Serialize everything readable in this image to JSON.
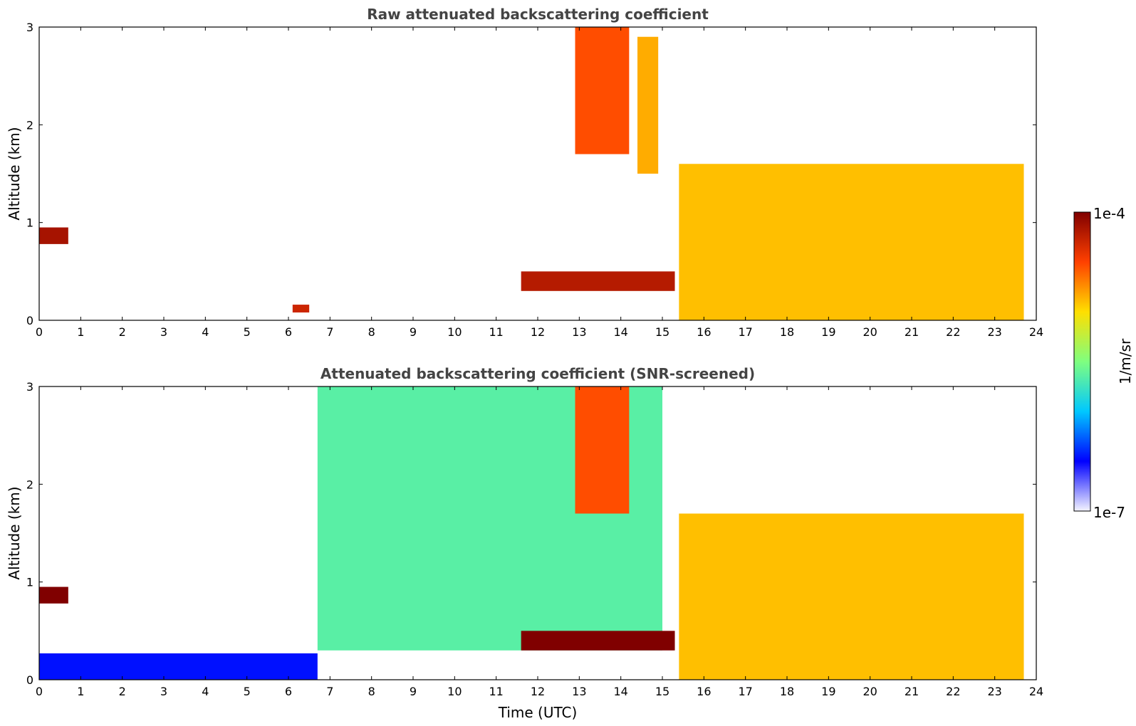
{
  "chart_data": [
    {
      "type": "heatmap",
      "title": "Raw attenuated backscattering coefficient",
      "xlabel": "",
      "ylabel": "Altitude (km)",
      "xlim": [
        0,
        24
      ],
      "ylim": [
        0,
        3
      ],
      "xticks": [
        "0",
        "1",
        "2",
        "3",
        "4",
        "5",
        "6",
        "7",
        "8",
        "9",
        "10",
        "11",
        "12",
        "13",
        "14",
        "15",
        "16",
        "17",
        "18",
        "19",
        "20",
        "21",
        "22",
        "23",
        "24"
      ],
      "yticks": [
        "0",
        "1",
        "2",
        "3"
      ],
      "color_scale": "log",
      "features": [
        {
          "t": [
            0.0,
            0.7
          ],
          "z": [
            0.78,
            0.95
          ],
          "level": 0.95
        },
        {
          "t": [
            6.1,
            6.5
          ],
          "z": [
            0.08,
            0.16
          ],
          "level": 0.9
        },
        {
          "t": [
            11.6,
            15.3
          ],
          "z": [
            0.3,
            0.5
          ],
          "level": 0.93
        },
        {
          "t": [
            12.9,
            14.2
          ],
          "z": [
            1.7,
            3.0
          ],
          "level": 0.82
        },
        {
          "t": [
            14.4,
            14.9
          ],
          "z": [
            1.5,
            2.9
          ],
          "level": 0.72
        },
        {
          "t": [
            15.4,
            23.7
          ],
          "z": [
            0.0,
            1.6
          ],
          "level": 0.7
        }
      ]
    },
    {
      "type": "heatmap",
      "title": "Attenuated backscattering coefficient (SNR-screened)",
      "xlabel": "Time (UTC)",
      "ylabel": "Altitude (km)",
      "xlim": [
        0,
        24
      ],
      "ylim": [
        0,
        3
      ],
      "xticks": [
        "0",
        "1",
        "2",
        "3",
        "4",
        "5",
        "6",
        "7",
        "8",
        "9",
        "10",
        "11",
        "12",
        "13",
        "14",
        "15",
        "16",
        "17",
        "18",
        "19",
        "20",
        "21",
        "22",
        "23",
        "24"
      ],
      "yticks": [
        "0",
        "1",
        "2",
        "3"
      ],
      "color_scale": "log",
      "features": [
        {
          "t": [
            0.0,
            0.7
          ],
          "z": [
            0.78,
            0.95
          ],
          "level": 1.0
        },
        {
          "t": [
            0.0,
            6.7
          ],
          "z": [
            0.0,
            0.27
          ],
          "level": 0.18
        },
        {
          "t": [
            6.7,
            15.0
          ],
          "z": [
            0.3,
            3.0
          ],
          "level": 0.45
        },
        {
          "t": [
            11.6,
            15.3
          ],
          "z": [
            0.3,
            0.5
          ],
          "level": 1.0
        },
        {
          "t": [
            12.9,
            14.2
          ],
          "z": [
            1.7,
            3.0
          ],
          "level": 0.82
        },
        {
          "t": [
            15.4,
            23.7
          ],
          "z": [
            0.0,
            1.7
          ],
          "level": 0.7
        }
      ]
    }
  ],
  "colorbar": {
    "label": "1/m/sr",
    "max_label": "1e-4",
    "min_label": "1e-7",
    "max": 0.0001,
    "min": 1e-07,
    "colormap": "jet",
    "colors": [
      "#f4f4ff",
      "#0000ff",
      "#00c8ff",
      "#7fff7f",
      "#ffdf00",
      "#ff4000",
      "#800000"
    ]
  }
}
